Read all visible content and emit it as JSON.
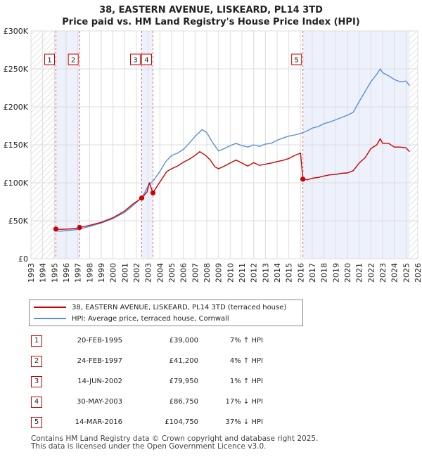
{
  "title": {
    "line1": "38, EASTERN AVENUE, LISKEARD, PL14 3TD",
    "line2": "Price paid vs. HM Land Registry's House Price Index (HPI)"
  },
  "chart_data": {
    "type": "line",
    "xlabel": "",
    "ylabel": "",
    "xlim": [
      1993,
      2026
    ],
    "ylim": [
      0,
      300000
    ],
    "y_ticks": [
      {
        "value": 0,
        "label": "£0"
      },
      {
        "value": 50000,
        "label": "£50K"
      },
      {
        "value": 100000,
        "label": "£100K"
      },
      {
        "value": 150000,
        "label": "£150K"
      },
      {
        "value": 200000,
        "label": "£200K"
      },
      {
        "value": 250000,
        "label": "£250K"
      },
      {
        "value": 300000,
        "label": "£300K"
      }
    ],
    "x_ticks": [
      "1993",
      "1994",
      "1995",
      "1996",
      "1997",
      "1998",
      "1999",
      "2000",
      "2001",
      "2002",
      "2003",
      "2004",
      "2005",
      "2006",
      "2007",
      "2008",
      "2009",
      "2010",
      "2011",
      "2012",
      "2013",
      "2014",
      "2015",
      "2016",
      "2017",
      "2018",
      "2019",
      "2020",
      "2021",
      "2022",
      "2023",
      "2024",
      "2025",
      "2026"
    ],
    "grid": true,
    "series": [
      {
        "name": "38, EASTERN AVENUE, LISKEARD, PL14 3TD (terraced house)",
        "color": "#cc0000",
        "points": [
          [
            1995.13,
            39000
          ],
          [
            1995.6,
            38700
          ],
          [
            1996.3,
            39200
          ],
          [
            1997.0,
            40300
          ],
          [
            1997.15,
            41200
          ],
          [
            1998.0,
            44000
          ],
          [
            1999.0,
            48000
          ],
          [
            2000.0,
            54000
          ],
          [
            2001.0,
            63000
          ],
          [
            2001.7,
            72000
          ],
          [
            2002.45,
            79950
          ],
          [
            2002.9,
            88000
          ],
          [
            2003.1,
            100000
          ],
          [
            2003.41,
            86750
          ],
          [
            2004.0,
            101000
          ],
          [
            2004.6,
            115000
          ],
          [
            2005.0,
            118500
          ],
          [
            2005.5,
            122000
          ],
          [
            2006.0,
            127000
          ],
          [
            2006.5,
            131000
          ],
          [
            2007.0,
            136000
          ],
          [
            2007.4,
            141000
          ],
          [
            2007.9,
            136000
          ],
          [
            2008.3,
            130000
          ],
          [
            2008.7,
            121000
          ],
          [
            2009.0,
            118500
          ],
          [
            2009.5,
            122000
          ],
          [
            2010.0,
            126000
          ],
          [
            2010.5,
            130000
          ],
          [
            2011.0,
            126000
          ],
          [
            2011.5,
            122000
          ],
          [
            2012.0,
            126500
          ],
          [
            2012.5,
            123000
          ],
          [
            2013.0,
            124500
          ],
          [
            2013.5,
            126000
          ],
          [
            2014.0,
            128000
          ],
          [
            2014.5,
            129500
          ],
          [
            2015.0,
            132000
          ],
          [
            2015.5,
            136000
          ],
          [
            2016.0,
            139000
          ],
          [
            2016.2,
            104750
          ],
          [
            2016.6,
            104000
          ],
          [
            2017.0,
            106000
          ],
          [
            2017.5,
            107000
          ],
          [
            2018.0,
            109000
          ],
          [
            2018.5,
            110500
          ],
          [
            2019.0,
            111000
          ],
          [
            2019.5,
            112500
          ],
          [
            2020.0,
            113000
          ],
          [
            2020.5,
            116000
          ],
          [
            2021.0,
            126000
          ],
          [
            2021.5,
            133000
          ],
          [
            2022.0,
            145000
          ],
          [
            2022.5,
            150000
          ],
          [
            2022.8,
            158000
          ],
          [
            2023.0,
            152000
          ],
          [
            2023.5,
            152000
          ],
          [
            2024.0,
            147000
          ],
          [
            2024.5,
            147000
          ],
          [
            2025.0,
            146000
          ],
          [
            2025.3,
            141000
          ]
        ]
      },
      {
        "name": "HPI: Average price, terraced house, Cornwall",
        "color": "#5b8fd6",
        "points": [
          [
            1995.0,
            37000
          ],
          [
            1995.5,
            36200
          ],
          [
            1996.0,
            37000
          ],
          [
            1997.0,
            38500
          ],
          [
            1998.0,
            42500
          ],
          [
            1999.0,
            47000
          ],
          [
            2000.0,
            53000
          ],
          [
            2001.0,
            61000
          ],
          [
            2001.7,
            70000
          ],
          [
            2002.5,
            81000
          ],
          [
            2003.0,
            96000
          ],
          [
            2003.5,
            104000
          ],
          [
            2004.0,
            115000
          ],
          [
            2004.5,
            128000
          ],
          [
            2005.0,
            136000
          ],
          [
            2005.5,
            139000
          ],
          [
            2006.0,
            144000
          ],
          [
            2006.5,
            152000
          ],
          [
            2007.0,
            161000
          ],
          [
            2007.6,
            170000
          ],
          [
            2008.0,
            166000
          ],
          [
            2008.5,
            153000
          ],
          [
            2009.0,
            142000
          ],
          [
            2009.5,
            145000
          ],
          [
            2010.0,
            149000
          ],
          [
            2010.5,
            152000
          ],
          [
            2011.0,
            149000
          ],
          [
            2011.5,
            147000
          ],
          [
            2012.0,
            150000
          ],
          [
            2012.5,
            148000
          ],
          [
            2013.0,
            151000
          ],
          [
            2013.5,
            152000
          ],
          [
            2014.0,
            156000
          ],
          [
            2014.5,
            159000
          ],
          [
            2015.0,
            161500
          ],
          [
            2015.5,
            163000
          ],
          [
            2016.0,
            165000
          ],
          [
            2016.5,
            168000
          ],
          [
            2017.0,
            172000
          ],
          [
            2017.5,
            174000
          ],
          [
            2018.0,
            178000
          ],
          [
            2018.5,
            180000
          ],
          [
            2019.0,
            183000
          ],
          [
            2019.5,
            186000
          ],
          [
            2020.0,
            189000
          ],
          [
            2020.5,
            193000
          ],
          [
            2021.0,
            207000
          ],
          [
            2021.5,
            220000
          ],
          [
            2022.0,
            233000
          ],
          [
            2022.5,
            243000
          ],
          [
            2022.8,
            250000
          ],
          [
            2023.0,
            245000
          ],
          [
            2023.5,
            241000
          ],
          [
            2024.0,
            236000
          ],
          [
            2024.5,
            233000
          ],
          [
            2025.0,
            234000
          ],
          [
            2025.3,
            228000
          ]
        ]
      }
    ],
    "transactions": [
      {
        "id": "1",
        "x": 1995.13,
        "price": 39000
      },
      {
        "id": "2",
        "x": 1997.15,
        "price": 41200
      },
      {
        "id": "3",
        "x": 2002.45,
        "price": 79950
      },
      {
        "id": "4",
        "x": 2003.41,
        "price": 86750
      },
      {
        "id": "5",
        "x": 2016.2,
        "price": 104750
      }
    ],
    "hatch_ranges": [
      [
        1993,
        1995.13
      ],
      [
        2025.3,
        2026
      ]
    ]
  },
  "legend": {
    "property_label": "38, EASTERN AVENUE, LISKEARD, PL14 3TD (terraced house)",
    "hpi_label": "HPI: Average price, terraced house, Cornwall",
    "property_color": "#cc0000",
    "hpi_color": "#5b8fd6"
  },
  "sales": [
    {
      "num": "1",
      "date": "20-FEB-1995",
      "price": "£39,000",
      "hpi": "7% ↑ HPI"
    },
    {
      "num": "2",
      "date": "24-FEB-1997",
      "price": "£41,200",
      "hpi": "4% ↑ HPI"
    },
    {
      "num": "3",
      "date": "14-JUN-2002",
      "price": "£79,950",
      "hpi": "1% ↑ HPI"
    },
    {
      "num": "4",
      "date": "30-MAY-2003",
      "price": "£86,750",
      "hpi": "17% ↓ HPI"
    },
    {
      "num": "5",
      "date": "14-MAR-2016",
      "price": "£104,750",
      "hpi": "37% ↓ HPI"
    }
  ],
  "footer": {
    "line1": "Contains HM Land Registry data © Crown copyright and database right 2025.",
    "line2": "This data is licensed under the Open Government Licence v3.0."
  }
}
